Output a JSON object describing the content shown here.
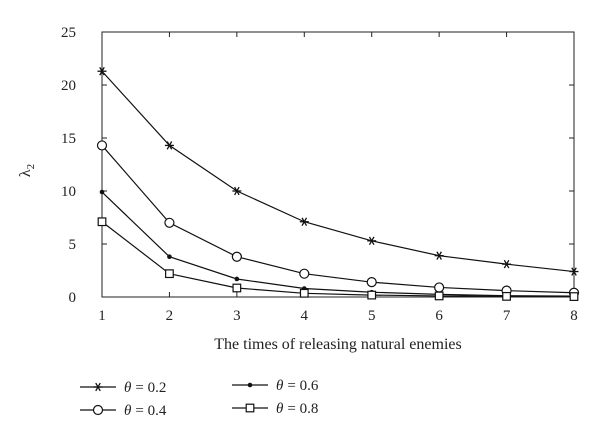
{
  "chart_data": {
    "type": "line",
    "title": "",
    "xlabel": "The times of releasing natural enemies",
    "ylabel": "λ",
    "ylabel_subscript": "2",
    "x": [
      1,
      2,
      3,
      4,
      5,
      6,
      7,
      8
    ],
    "xlim": [
      1,
      8
    ],
    "ylim": [
      0,
      25
    ],
    "xticks": [
      "1",
      "2",
      "3",
      "4",
      "5",
      "6",
      "7",
      "8"
    ],
    "yticks": [
      "0",
      "5",
      "10",
      "15",
      "20",
      "25"
    ],
    "grid": false,
    "legend_position": "bottom",
    "series": [
      {
        "name": "θ = 0.2",
        "name_symbol": "θ",
        "name_value": "= 0.2",
        "marker": "asterisk",
        "values": [
          21.3,
          14.3,
          10.0,
          7.1,
          5.3,
          3.9,
          3.1,
          2.4
        ]
      },
      {
        "name": "θ = 0.4",
        "name_symbol": "θ",
        "name_value": "= 0.4",
        "marker": "circle",
        "values": [
          14.3,
          7.0,
          3.8,
          2.2,
          1.4,
          0.9,
          0.6,
          0.4
        ]
      },
      {
        "name": "θ = 0.6",
        "name_symbol": "θ",
        "name_value": "= 0.6",
        "marker": "dot",
        "values": [
          9.9,
          3.8,
          1.7,
          0.8,
          0.45,
          0.25,
          0.12,
          0.08
        ]
      },
      {
        "name": "θ = 0.8",
        "name_symbol": "θ",
        "name_value": "= 0.8",
        "marker": "square",
        "values": [
          7.1,
          2.2,
          0.85,
          0.35,
          0.18,
          0.1,
          0.06,
          0.04
        ]
      }
    ]
  }
}
